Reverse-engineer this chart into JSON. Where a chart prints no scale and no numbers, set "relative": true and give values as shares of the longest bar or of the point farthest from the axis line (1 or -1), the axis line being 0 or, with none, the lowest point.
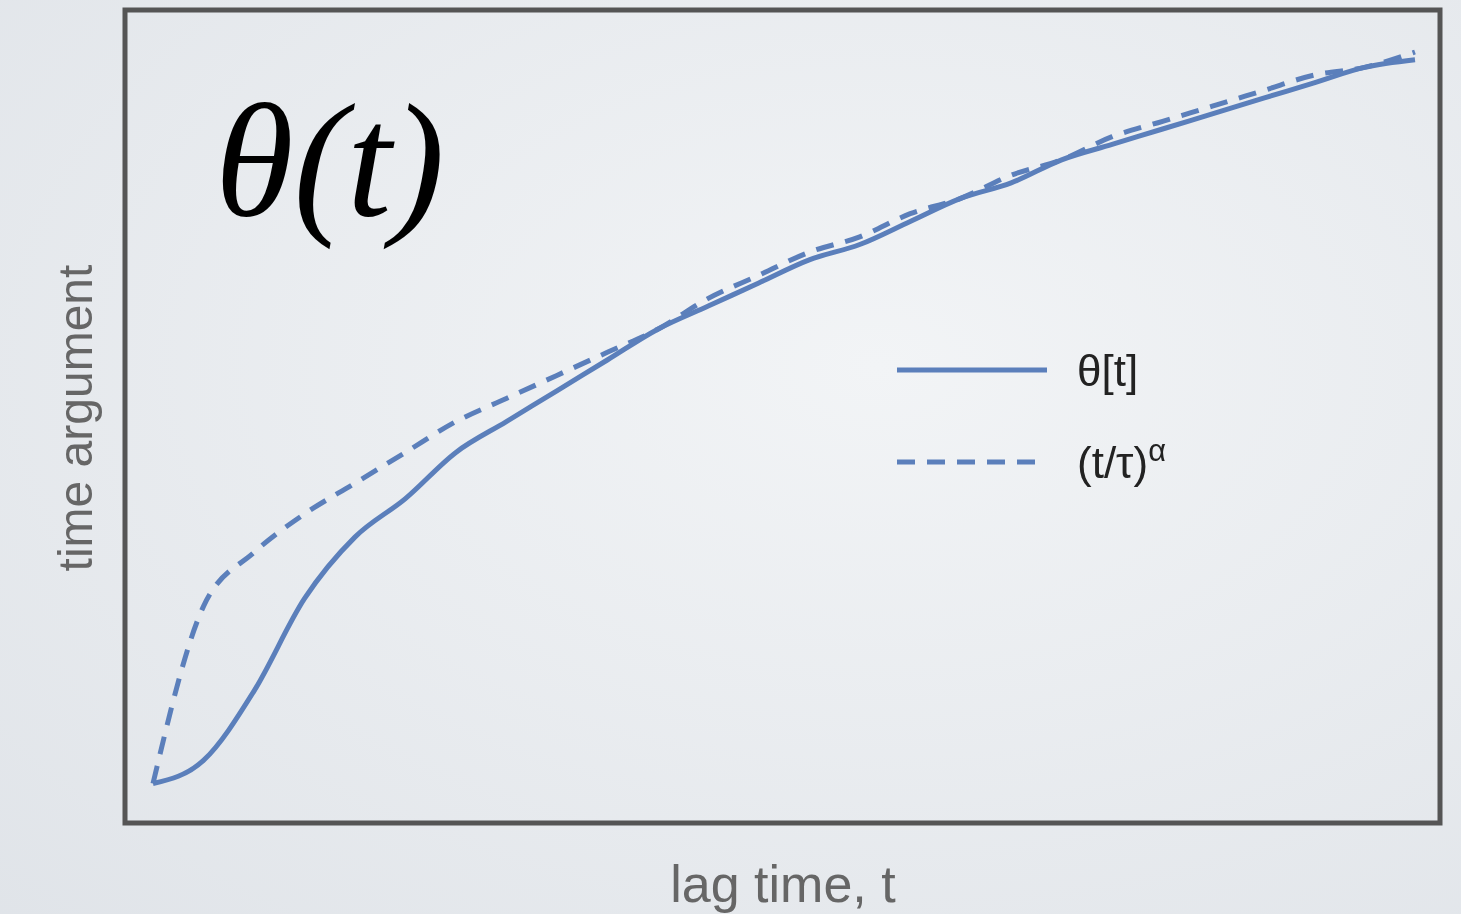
{
  "chart_data": {
    "type": "line",
    "title": "θ(t)",
    "xlabel": "lag time, t",
    "ylabel": "time argument",
    "relative": true,
    "legend": "right",
    "categories": [
      null,
      null,
      null,
      null,
      null,
      null,
      null,
      null,
      null,
      null,
      null,
      null,
      null,
      null,
      null,
      null,
      null,
      null,
      null,
      null,
      null,
      null,
      null,
      null,
      null,
      null
    ],
    "series": [
      {
        "name": "θ[t]",
        "color": "#5b7fbb",
        "line_style": "solid",
        "values": [
          0.05,
          0.08,
          0.17,
          0.29,
          0.37,
          0.42,
          0.48,
          0.52,
          0.56,
          0.6,
          0.64,
          0.67,
          0.7,
          0.73,
          0.75,
          0.78,
          0.81,
          0.83,
          0.86,
          0.88,
          0.9,
          0.92,
          0.94,
          0.96,
          0.98,
          0.99
        ]
      },
      {
        "name": "(t/τ)$^{α}$",
        "color": "#5b7fbb",
        "line_style": "dashed",
        "values": [
          0.05,
          0.28,
          0.35,
          0.4,
          0.44,
          0.48,
          0.52,
          0.55,
          0.58,
          0.61,
          0.64,
          0.68,
          0.71,
          0.74,
          0.76,
          0.79,
          0.81,
          0.84,
          0.86,
          0.89,
          0.91,
          0.93,
          0.95,
          0.97,
          0.98,
          1
        ]
      }
    ]
  }
}
